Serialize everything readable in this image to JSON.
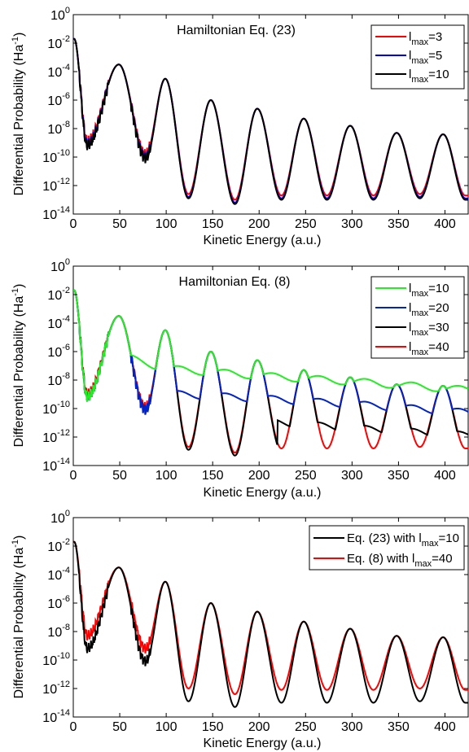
{
  "chart_data": [
    {
      "type": "line",
      "title": "",
      "annotation": "Hamiltonian Eq. (23)",
      "xlabel": "Kinetic Energy (a.u.)",
      "ylabel_main": "Differential Probability (Ha",
      "ylabel_sup": "-1",
      "ylabel_end": ")",
      "xlim": [
        0,
        425
      ],
      "ylim_log10": [
        -14,
        0
      ],
      "yscale": "log",
      "x_ticks": [
        "0",
        "50",
        "100",
        "150",
        "200",
        "250",
        "300",
        "350",
        "400"
      ],
      "y_ticks": [
        {
          "base": "10",
          "exp": "0"
        },
        {
          "base": "10",
          "exp": "-2"
        },
        {
          "base": "10",
          "exp": "-4"
        },
        {
          "base": "10",
          "exp": "-6"
        },
        {
          "base": "10",
          "exp": "-8"
        },
        {
          "base": "10",
          "exp": "-10"
        },
        {
          "base": "10",
          "exp": "-12"
        },
        {
          "base": "10",
          "exp": "-14"
        }
      ],
      "legend_position": "top-right",
      "series": [
        {
          "legend_pre": "l",
          "legend_sub": "max",
          "legend_post": "=3",
          "color": "#ff0000",
          "cutoff": null,
          "plateau_log10": null,
          "min_bias": 0.3
        },
        {
          "legend_pre": "l",
          "legend_sub": "max",
          "legend_post": "=5",
          "color": "#0000ff",
          "cutoff": null,
          "plateau_log10": null,
          "min_bias": 0.1
        },
        {
          "legend_pre": "l",
          "legend_sub": "max",
          "legend_post": "=10",
          "color": "#000000",
          "cutoff": null,
          "plateau_log10": null,
          "min_bias": 0
        }
      ]
    },
    {
      "type": "line",
      "title": "",
      "annotation": "Hamiltonian Eq. (8)",
      "xlabel": "Kinetic Energy (a.u.)",
      "ylabel_main": "Differential Probability (Ha",
      "ylabel_sup": "-1",
      "ylabel_end": ")",
      "xlim": [
        0,
        425
      ],
      "ylim_log10": [
        -14,
        0
      ],
      "yscale": "log",
      "x_ticks": [
        "0",
        "50",
        "100",
        "150",
        "200",
        "250",
        "300",
        "350",
        "400"
      ],
      "y_ticks": [
        {
          "base": "10",
          "exp": "0"
        },
        {
          "base": "10",
          "exp": "-2"
        },
        {
          "base": "10",
          "exp": "-4"
        },
        {
          "base": "10",
          "exp": "-6"
        },
        {
          "base": "10",
          "exp": "-8"
        },
        {
          "base": "10",
          "exp": "-10"
        },
        {
          "base": "10",
          "exp": "-12"
        },
        {
          "base": "10",
          "exp": "-14"
        }
      ],
      "legend_position": "top-right",
      "series": [
        {
          "legend_pre": "l",
          "legend_sub": "max",
          "legend_post": "=10",
          "color": "#22ee22",
          "cutoff": 57,
          "plateau_log10": [
            [
              57,
              -6.4
            ],
            [
              100,
              -7.2
            ],
            [
              200,
              -7.7
            ],
            [
              300,
              -8.1
            ],
            [
              425,
              -8.7
            ]
          ],
          "min_bias": 0
        },
        {
          "legend_pre": "l",
          "legend_sub": "max",
          "legend_post": "=20",
          "color": "#0022cc",
          "cutoff": 110,
          "plateau_log10": [
            [
              110,
              -9.0
            ],
            [
              200,
              -9.3
            ],
            [
              300,
              -9.7
            ],
            [
              425,
              -10.3
            ]
          ],
          "min_bias": 0
        },
        {
          "legend_pre": "l",
          "legend_sub": "max",
          "legend_post": "=30",
          "color": "#000000",
          "cutoff": 220,
          "plateau_log10": [
            [
              220,
              -11.0
            ],
            [
              300,
              -11.4
            ],
            [
              425,
              -11.9
            ]
          ],
          "min_bias": 0
        },
        {
          "legend_pre": "l",
          "legend_sub": "max",
          "legend_post": "=40",
          "color": "#ff0000",
          "cutoff": null,
          "plateau_log10": null,
          "min_bias": 0.2
        }
      ]
    },
    {
      "type": "line",
      "title": "",
      "annotation": "",
      "xlabel": "Kinetic Energy (a.u.)",
      "ylabel_main": "Differential Probability (Ha",
      "ylabel_sup": "-1",
      "ylabel_end": ")",
      "xlim": [
        0,
        425
      ],
      "ylim_log10": [
        -14,
        0
      ],
      "yscale": "log",
      "x_ticks": [
        "0",
        "50",
        "100",
        "150",
        "200",
        "250",
        "300",
        "350",
        "400"
      ],
      "y_ticks": [
        {
          "base": "10",
          "exp": "0"
        },
        {
          "base": "10",
          "exp": "-2"
        },
        {
          "base": "10",
          "exp": "-4"
        },
        {
          "base": "10",
          "exp": "-6"
        },
        {
          "base": "10",
          "exp": "-8"
        },
        {
          "base": "10",
          "exp": "-10"
        },
        {
          "base": "10",
          "exp": "-12"
        },
        {
          "base": "10",
          "exp": "-14"
        }
      ],
      "legend_position": "top-right",
      "series": [
        {
          "legend_pre": "Eq. (23) with l",
          "legend_sub": "max",
          "legend_post": "=10",
          "color": "#000000",
          "cutoff": null,
          "plateau_log10": null,
          "min_bias": 0
        },
        {
          "legend_pre": "Eq. (8) with l",
          "legend_sub": "max",
          "legend_post": "=40",
          "color": "#ff0000",
          "cutoff": null,
          "plateau_log10": null,
          "min_bias": 0.9
        }
      ]
    }
  ],
  "envelope": {
    "peaks": [
      [
        1,
        -1.7
      ],
      [
        49,
        -3.5
      ],
      [
        99,
        -4.5
      ],
      [
        148,
        -6.0
      ],
      [
        198,
        -6.6
      ],
      [
        248,
        -7.3
      ],
      [
        298,
        -7.8
      ],
      [
        348,
        -8.3
      ],
      [
        398,
        -8.4
      ]
    ],
    "minima": [
      [
        15,
        -9.2
      ],
      [
        78,
        -10.1
      ],
      [
        124,
        -12.9
      ],
      [
        174,
        -13.3
      ],
      [
        224,
        -13.0
      ],
      [
        273,
        -13.0
      ],
      [
        323,
        -13.0
      ],
      [
        373,
        -12.9
      ],
      [
        422,
        -13.0
      ]
    ]
  }
}
